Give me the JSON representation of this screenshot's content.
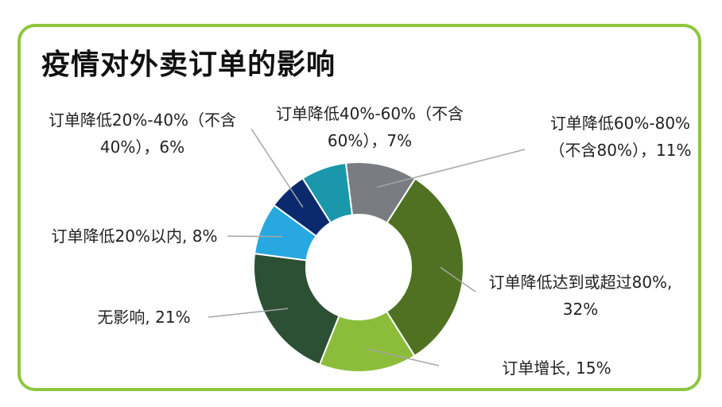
{
  "chart_data": {
    "type": "pie",
    "donut": true,
    "title": "疫情对外卖订单的影响",
    "categories": [
      "订单降低60%-80%（不含80%）",
      "订单降低达到或超过80%",
      "订单增长",
      "无影响",
      "订单降低20%以内",
      "订单降低20%-40%（不含40%）",
      "订单降低40%-60%（不含60%）"
    ],
    "values": [
      11,
      32,
      15,
      21,
      8,
      6,
      7
    ],
    "value_labels": [
      "11%",
      "32%",
      "15%",
      "21%",
      "8%",
      "6%",
      "7%"
    ],
    "colors": [
      "#797c80",
      "#4f7121",
      "#8cbd3a",
      "#2b5034",
      "#28a8e0",
      "#0b2a6e",
      "#1a97aa"
    ]
  },
  "labels": [
    {
      "text": "订单降低60%-80%（不含80%），11%"
    },
    {
      "text": "订单降低达到或超过80%, 32%"
    },
    {
      "text": "订单增长, 15%"
    },
    {
      "text": "无影响, 21%"
    },
    {
      "text": "订单降低20%以内, 8%"
    },
    {
      "text": "订单降低20%-40%（不含40%），6%"
    },
    {
      "text": "订单降低40%-60%（不含60%），7%"
    }
  ]
}
